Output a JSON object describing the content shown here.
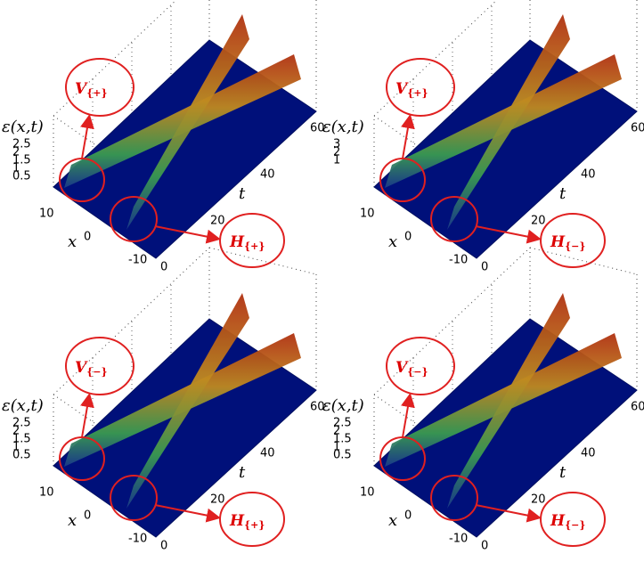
{
  "panels": [
    {
      "z_label": "ε(x,t)",
      "z_ticks": [
        "2.5",
        "2",
        "1.5",
        "1",
        "0.5"
      ],
      "x_label": "x",
      "x_ticks": [
        "10",
        "0",
        "-10"
      ],
      "t_label": "t",
      "t_ticks": [
        "0",
        "20",
        "40",
        "60"
      ],
      "v_label": {
        "letter": "V",
        "sub": "{+}"
      },
      "h_label": {
        "letter": "H",
        "sub": "{+}"
      }
    },
    {
      "z_label": "ε(x,t)",
      "z_ticks": [
        "3",
        "2",
        "1"
      ],
      "x_label": "x",
      "x_ticks": [
        "10",
        "0",
        "-10"
      ],
      "t_label": "t",
      "t_ticks": [
        "0",
        "20",
        "40",
        "60"
      ],
      "v_label": {
        "letter": "V",
        "sub": "{+}"
      },
      "h_label": {
        "letter": "H",
        "sub": "{−}"
      }
    },
    {
      "z_label": "ε(x,t)",
      "z_ticks": [
        "2.5",
        "2",
        "1.5",
        "1",
        "0.5"
      ],
      "x_label": "x",
      "x_ticks": [
        "10",
        "0",
        "-10"
      ],
      "t_label": "t",
      "t_ticks": [
        "0",
        "20",
        "40",
        "60"
      ],
      "v_label": {
        "letter": "V",
        "sub": "{−}"
      },
      "h_label": {
        "letter": "H",
        "sub": "{+}"
      }
    },
    {
      "z_label": "ε(x,t)",
      "z_ticks": [
        "2.5",
        "2",
        "1.5",
        "1",
        "0.5"
      ],
      "x_label": "x",
      "x_ticks": [
        "10",
        "0",
        "-10"
      ],
      "t_label": "t",
      "t_ticks": [
        "0",
        "20",
        "40",
        "60"
      ],
      "v_label": {
        "letter": "V",
        "sub": "{−}"
      },
      "h_label": {
        "letter": "H",
        "sub": "{−}"
      }
    }
  ]
}
